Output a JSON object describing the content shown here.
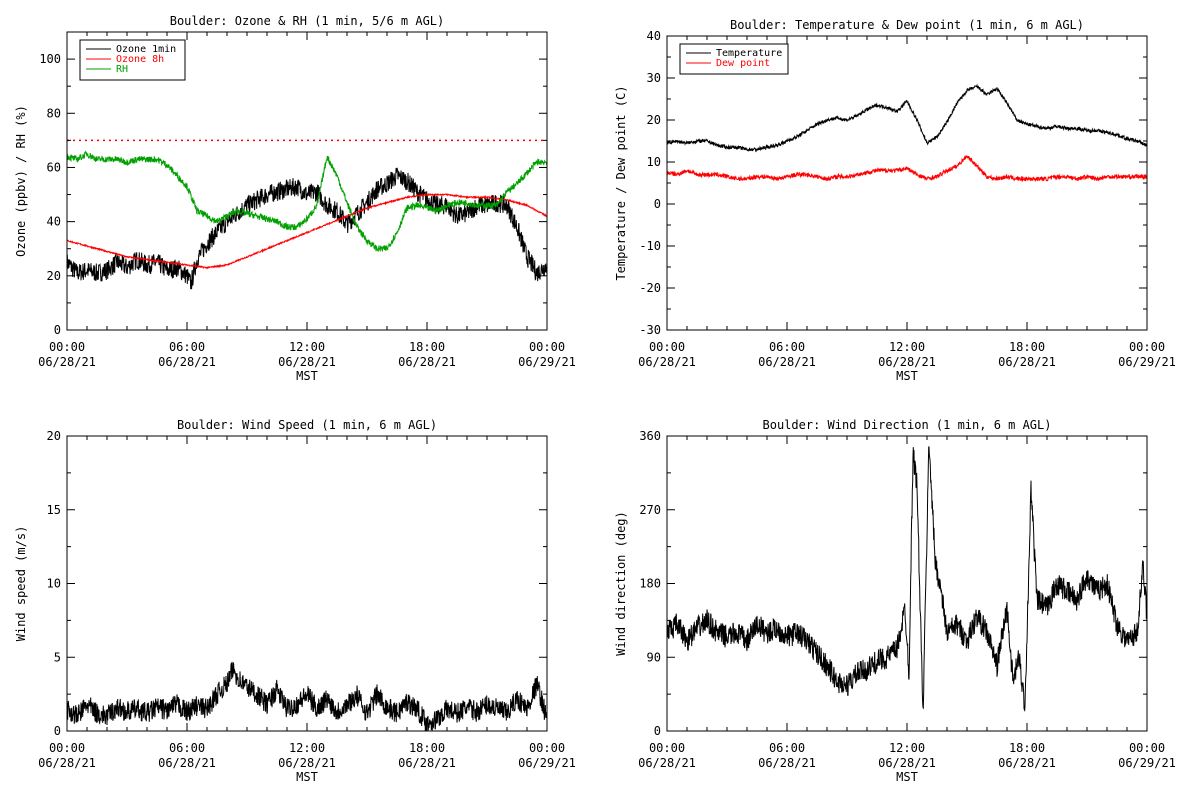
{
  "chart_data": [
    {
      "type": "line",
      "title": "Boulder: Ozone & RH (1 min, 5/6 m AGL)",
      "xlabel": "MST",
      "ylabel": "Ozone (ppbv) / RH (%)",
      "xlim": [
        0,
        24
      ],
      "ylim": [
        0,
        110
      ],
      "x_ticks": [
        {
          "x": 0,
          "time": "00:00",
          "date": "06/28/21"
        },
        {
          "x": 6,
          "time": "06:00",
          "date": "06/28/21"
        },
        {
          "x": 12,
          "time": "12:00",
          "date": "06/28/21"
        },
        {
          "x": 18,
          "time": "18:00",
          "date": "06/28/21"
        },
        {
          "x": 24,
          "time": "00:00",
          "date": "06/29/21"
        }
      ],
      "y_ticks": [
        0,
        20,
        40,
        60,
        80,
        100
      ],
      "legend_position": "top-left",
      "reference_lines": [
        {
          "y": 70,
          "color": "#ff0000",
          "style": "dotted"
        }
      ],
      "series": [
        {
          "name": "Ozone 1min",
          "color": "#000000",
          "x": [
            0,
            0.5,
            1,
            1.5,
            2,
            2.5,
            3,
            3.5,
            4,
            4.5,
            5,
            5.5,
            6,
            6.2,
            6.5,
            7,
            7.5,
            8,
            8.5,
            9,
            9.5,
            10,
            10.5,
            11,
            11.5,
            12,
            12.5,
            13,
            13.5,
            14,
            14.5,
            15,
            15.5,
            16,
            16.5,
            17,
            17.5,
            18,
            18.5,
            19,
            19.5,
            20,
            20.5,
            21,
            21.5,
            22,
            22.5,
            23,
            23.5,
            24
          ],
          "y": [
            25,
            21,
            22,
            21,
            22,
            25,
            23,
            26,
            24,
            25,
            22,
            23,
            20,
            17,
            26,
            32,
            36,
            40,
            43,
            46,
            48,
            50,
            51,
            52,
            53,
            50,
            51,
            46,
            44,
            39,
            43,
            47,
            52,
            54,
            57,
            55,
            51,
            48,
            46,
            46,
            42,
            43,
            46,
            46,
            47,
            46,
            38,
            27,
            21,
            24
          ]
        },
        {
          "name": "Ozone 8h",
          "color": "#ff0000",
          "x": [
            0,
            1,
            2,
            3,
            4,
            5,
            6,
            7,
            8,
            9,
            10,
            11,
            12,
            13,
            14,
            15,
            16,
            17,
            18,
            19,
            20,
            21,
            22,
            23,
            24
          ],
          "y": [
            33,
            31,
            29,
            27,
            26,
            25,
            24,
            23,
            24,
            27,
            30,
            33,
            36,
            39,
            42,
            45,
            47,
            49,
            50,
            50,
            49,
            49,
            48,
            46,
            42
          ]
        },
        {
          "name": "RH",
          "color": "#00a000",
          "x": [
            0,
            0.5,
            1,
            1.5,
            2,
            2.5,
            3,
            3.5,
            4,
            4.5,
            5,
            5.5,
            6,
            6.5,
            7,
            7.5,
            8,
            8.5,
            9,
            9.5,
            10,
            10.5,
            11,
            11.5,
            12,
            12.5,
            13,
            13.5,
            14,
            14.5,
            15,
            15.5,
            16,
            16.5,
            17,
            17.5,
            18,
            18.5,
            19,
            19.5,
            20,
            20.5,
            21,
            21.5,
            22,
            22.5,
            23,
            23.5,
            24
          ],
          "y": [
            64,
            63,
            65,
            63,
            63,
            63,
            62,
            63,
            63,
            63,
            61,
            57,
            53,
            44,
            42,
            40,
            42,
            44,
            43,
            42,
            41,
            40,
            38,
            38,
            41,
            46,
            64,
            57,
            47,
            38,
            33,
            30,
            30,
            36,
            45,
            46,
            45,
            44,
            46,
            47,
            47,
            46,
            46,
            46,
            51,
            54,
            58,
            62,
            62
          ]
        }
      ]
    },
    {
      "type": "line",
      "title": "Boulder: Temperature & Dew point (1 min, 6 m AGL)",
      "xlabel": "MST",
      "ylabel": "Temperature / Dew point (C)",
      "xlim": [
        0,
        24
      ],
      "ylim": [
        -30,
        40
      ],
      "x_ticks": [
        {
          "x": 0,
          "time": "00:00",
          "date": "06/28/21"
        },
        {
          "x": 6,
          "time": "06:00",
          "date": "06/28/21"
        },
        {
          "x": 12,
          "time": "12:00",
          "date": "06/28/21"
        },
        {
          "x": 18,
          "time": "18:00",
          "date": "06/28/21"
        },
        {
          "x": 24,
          "time": "00:00",
          "date": "06/29/21"
        }
      ],
      "y_ticks": [
        -30,
        -20,
        -10,
        0,
        10,
        20,
        30,
        40
      ],
      "legend_position": "top-left",
      "series": [
        {
          "name": "Temperature",
          "color": "#000000",
          "x": [
            0,
            0.5,
            1,
            1.5,
            2,
            2.5,
            3,
            3.5,
            4,
            4.5,
            5,
            5.5,
            6,
            6.5,
            7,
            7.5,
            8,
            8.5,
            9,
            9.5,
            10,
            10.5,
            11,
            11.5,
            12,
            12.5,
            13,
            13.5,
            14,
            14.5,
            15,
            15.5,
            16,
            16.5,
            17,
            17.5,
            18,
            18.5,
            19,
            19.5,
            20,
            20.5,
            21,
            21.5,
            22,
            22.5,
            23,
            23.5,
            24
          ],
          "y": [
            14.5,
            15,
            14.5,
            15,
            15,
            14,
            13.5,
            13.5,
            13,
            13,
            13.5,
            14,
            15,
            16,
            17.5,
            19,
            20,
            20.5,
            20,
            21,
            22.5,
            23.5,
            23,
            22,
            24.5,
            20,
            14.5,
            16,
            19.5,
            24,
            27,
            28,
            26,
            27.5,
            24,
            20,
            19,
            18.5,
            18,
            18.5,
            18,
            18,
            17.5,
            17.5,
            17,
            16.5,
            15.5,
            15,
            14
          ]
        },
        {
          "name": "Dew point",
          "color": "#ff0000",
          "x": [
            0,
            0.5,
            1,
            1.5,
            2,
            2.5,
            3,
            3.5,
            4,
            4.5,
            5,
            5.5,
            6,
            6.5,
            7,
            7.5,
            8,
            8.5,
            9,
            9.5,
            10,
            10.5,
            11,
            11.5,
            12,
            12.5,
            13,
            13.5,
            14,
            14.5,
            15,
            15.5,
            16,
            16.5,
            17,
            17.5,
            18,
            18.5,
            19,
            19.5,
            20,
            20.5,
            21,
            21.5,
            22,
            22.5,
            23,
            23.5,
            24
          ],
          "y": [
            7.5,
            7,
            8,
            7,
            7,
            7,
            6.5,
            6,
            6,
            6.5,
            6.5,
            6,
            6.5,
            7,
            7,
            6.5,
            6,
            6.5,
            6.5,
            7,
            7.5,
            8,
            8,
            8,
            8.5,
            7,
            6,
            6.5,
            8,
            9,
            11.5,
            9,
            6.5,
            6,
            6.5,
            6,
            6,
            6,
            6,
            6.5,
            6.5,
            6,
            6.5,
            6,
            6.5,
            6.5,
            6.5,
            6.5,
            6.5
          ]
        }
      ]
    },
    {
      "type": "line",
      "title": "Boulder: Wind Speed (1 min, 6 m AGL)",
      "xlabel": "MST",
      "ylabel": "Wind speed (m/s)",
      "xlim": [
        0,
        24
      ],
      "ylim": [
        0,
        20
      ],
      "x_ticks": [
        {
          "x": 0,
          "time": "00:00",
          "date": "06/28/21"
        },
        {
          "x": 6,
          "time": "06:00",
          "date": "06/28/21"
        },
        {
          "x": 12,
          "time": "12:00",
          "date": "06/28/21"
        },
        {
          "x": 18,
          "time": "18:00",
          "date": "06/28/21"
        },
        {
          "x": 24,
          "time": "00:00",
          "date": "06/29/21"
        }
      ],
      "y_ticks": [
        0,
        5,
        10,
        15,
        20
      ],
      "series": [
        {
          "name": "",
          "color": "#000000",
          "x": [
            0,
            0.5,
            1,
            1.5,
            2,
            2.5,
            3,
            3.5,
            4,
            4.5,
            5,
            5.5,
            6,
            6.5,
            7,
            7.5,
            8,
            8.3,
            8.6,
            9,
            9.5,
            10,
            10.5,
            11,
            11.5,
            12,
            12.5,
            13,
            13.5,
            14,
            14.5,
            15,
            15.5,
            16,
            16.5,
            17,
            17.5,
            18,
            18.5,
            19,
            19.5,
            20,
            20.5,
            21,
            21.5,
            22,
            22.5,
            23,
            23.5,
            24
          ],
          "y": [
            1.5,
            1,
            1.8,
            1.2,
            1,
            1.6,
            1.3,
            1.5,
            1.2,
            1.6,
            1.4,
            1.8,
            1.3,
            1.7,
            1.5,
            2.5,
            3.2,
            4.2,
            3.5,
            3,
            2.5,
            1.8,
            2.8,
            1.5,
            1.8,
            2.5,
            1.5,
            2.2,
            1.3,
            1.8,
            2.4,
            1.2,
            2.5,
            1.6,
            1.2,
            2,
            1.5,
            0.5,
            0.8,
            1.5,
            1.2,
            1.6,
            1.3,
            1.8,
            1.5,
            1.2,
            2.2,
            1.5,
            3.2,
            0.8
          ]
        }
      ]
    },
    {
      "type": "line",
      "title": "Boulder: Wind Direction (1 min, 6 m AGL)",
      "xlabel": "MST",
      "ylabel": "Wind direction (deg)",
      "xlim": [
        0,
        24
      ],
      "ylim": [
        0,
        360
      ],
      "x_ticks": [
        {
          "x": 0,
          "time": "00:00",
          "date": "06/28/21"
        },
        {
          "x": 6,
          "time": "06:00",
          "date": "06/28/21"
        },
        {
          "x": 12,
          "time": "12:00",
          "date": "06/28/21"
        },
        {
          "x": 18,
          "time": "18:00",
          "date": "06/28/21"
        },
        {
          "x": 24,
          "time": "00:00",
          "date": "06/29/21"
        }
      ],
      "y_ticks": [
        0,
        90,
        180,
        270,
        360
      ],
      "series": [
        {
          "name": "",
          "color": "#000000",
          "x": [
            0,
            0.5,
            1,
            1.5,
            2,
            2.5,
            3,
            3.5,
            4,
            4.5,
            5,
            5.5,
            6,
            6.5,
            7,
            7.5,
            8,
            8.5,
            9,
            9.5,
            10,
            10.5,
            11,
            11.5,
            11.9,
            12.1,
            12.3,
            12.5,
            12.8,
            13.1,
            13.4,
            13.7,
            14,
            14.5,
            15,
            15.5,
            16,
            16.5,
            17,
            17.3,
            17.6,
            17.9,
            18.2,
            18.5,
            19,
            19.5,
            20,
            20.5,
            21,
            21.5,
            22,
            22.5,
            23,
            23.5,
            23.8,
            24
          ],
          "y": [
            120,
            130,
            110,
            125,
            135,
            120,
            115,
            120,
            110,
            130,
            120,
            125,
            115,
            120,
            110,
            95,
            80,
            60,
            55,
            70,
            75,
            85,
            90,
            100,
            150,
            70,
            340,
            300,
            20,
            355,
            210,
            170,
            120,
            130,
            110,
            140,
            120,
            80,
            150,
            60,
            90,
            30,
            295,
            160,
            150,
            180,
            170,
            160,
            190,
            170,
            180,
            130,
            110,
            120,
            200,
            140
          ]
        }
      ]
    }
  ]
}
